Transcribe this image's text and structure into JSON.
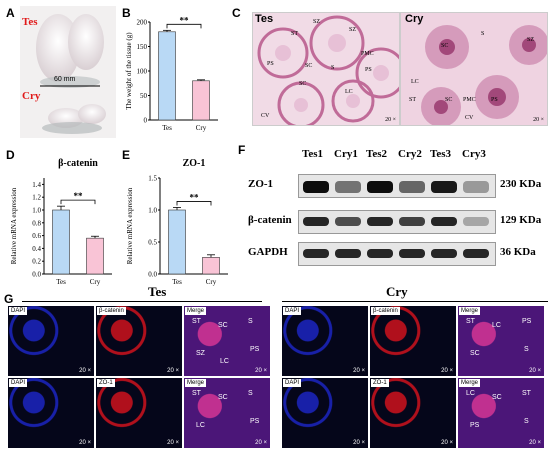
{
  "panels": {
    "A": {
      "letter": "A",
      "tes": "Tes",
      "cry": "Cry",
      "ruler": "60 mm"
    },
    "B": {
      "letter": "B"
    },
    "C": {
      "letter": "C",
      "tes": "Tes",
      "cry": "Cry",
      "tes_labels": [
        "SZ",
        "ST",
        "SZ",
        "PS",
        "SC",
        "SC",
        "S",
        "PMC",
        "PS",
        "LC",
        "CV"
      ],
      "cry_labels": [
        "SC",
        "S",
        "SZ",
        "LC",
        "ST",
        "SC",
        "PMC",
        "PS",
        "CV"
      ],
      "scale": "20 ×"
    },
    "D": {
      "letter": "D"
    },
    "E": {
      "letter": "E"
    },
    "F": {
      "letter": "F",
      "lanes": [
        "Tes1",
        "Cry1",
        "Tes2",
        "Cry2",
        "Tes3",
        "Cry3"
      ],
      "rows": [
        {
          "protein": "ZO-1",
          "size": "230 KDa",
          "intensity": [
            0.95,
            0.55,
            0.95,
            0.6,
            0.9,
            0.4
          ]
        },
        {
          "protein": "β-catenin",
          "size": "129 KDa",
          "intensity": [
            0.85,
            0.7,
            0.85,
            0.75,
            0.85,
            0.35
          ]
        },
        {
          "protein": "GAPDH",
          "size": "36 KDa",
          "intensity": [
            0.85,
            0.85,
            0.85,
            0.85,
            0.85,
            0.85
          ]
        }
      ]
    },
    "G": {
      "letter": "G",
      "tes": "Tes",
      "cry": "Cry",
      "dapi": "DAPI",
      "bcat": "β-catenin",
      "zo1": "ZO-1",
      "merge": "Merge",
      "scale": "20 ×",
      "tes_row1": [
        "ST",
        "SC",
        "S",
        "PS",
        "SZ",
        "LC"
      ],
      "tes_row2": [
        "ST",
        "SC",
        "S",
        "PS",
        "LC"
      ],
      "cry_row1": [
        "ST",
        "LC",
        "PS",
        "S",
        "SC"
      ],
      "cry_row2": [
        "LC",
        "SC",
        "ST",
        "S",
        "PS"
      ]
    }
  },
  "chart_data": [
    {
      "type": "bar",
      "panel": "B",
      "categories": [
        "Tes",
        "Cry"
      ],
      "values": [
        180,
        80
      ],
      "errors": [
        3,
        2
      ],
      "ylabel": "The weight of the tissue (g)",
      "ylim": [
        0,
        200
      ],
      "yticks": [
        "0",
        "50",
        "100",
        "150",
        "200"
      ],
      "significance": "**",
      "colors": [
        "#b9d9f5",
        "#f9c4d6"
      ]
    },
    {
      "type": "bar",
      "panel": "D",
      "title": "β-catenin",
      "categories": [
        "Tes",
        "Cry"
      ],
      "values": [
        1.0,
        0.56
      ],
      "errors": [
        0.06,
        0.03
      ],
      "ylabel": "Relative mRNA expression",
      "ylim": [
        0,
        1.5
      ],
      "yticks": [
        "0.0",
        "0.2",
        "0.4",
        "0.6",
        "0.8",
        "1.0",
        "1.2",
        "1.4"
      ],
      "significance": "**",
      "colors": [
        "#b9d9f5",
        "#f9c4d6"
      ]
    },
    {
      "type": "bar",
      "panel": "E",
      "title": "ZO-1",
      "categories": [
        "Tes",
        "Cry"
      ],
      "values": [
        1.0,
        0.26
      ],
      "errors": [
        0.04,
        0.04
      ],
      "ylabel": "Relative mRNA expression",
      "ylim": [
        0,
        1.5
      ],
      "yticks": [
        "0.0",
        "0.5",
        "1.0",
        "1.5"
      ],
      "significance": "**",
      "colors": [
        "#b9d9f5",
        "#f9c4d6"
      ]
    }
  ]
}
